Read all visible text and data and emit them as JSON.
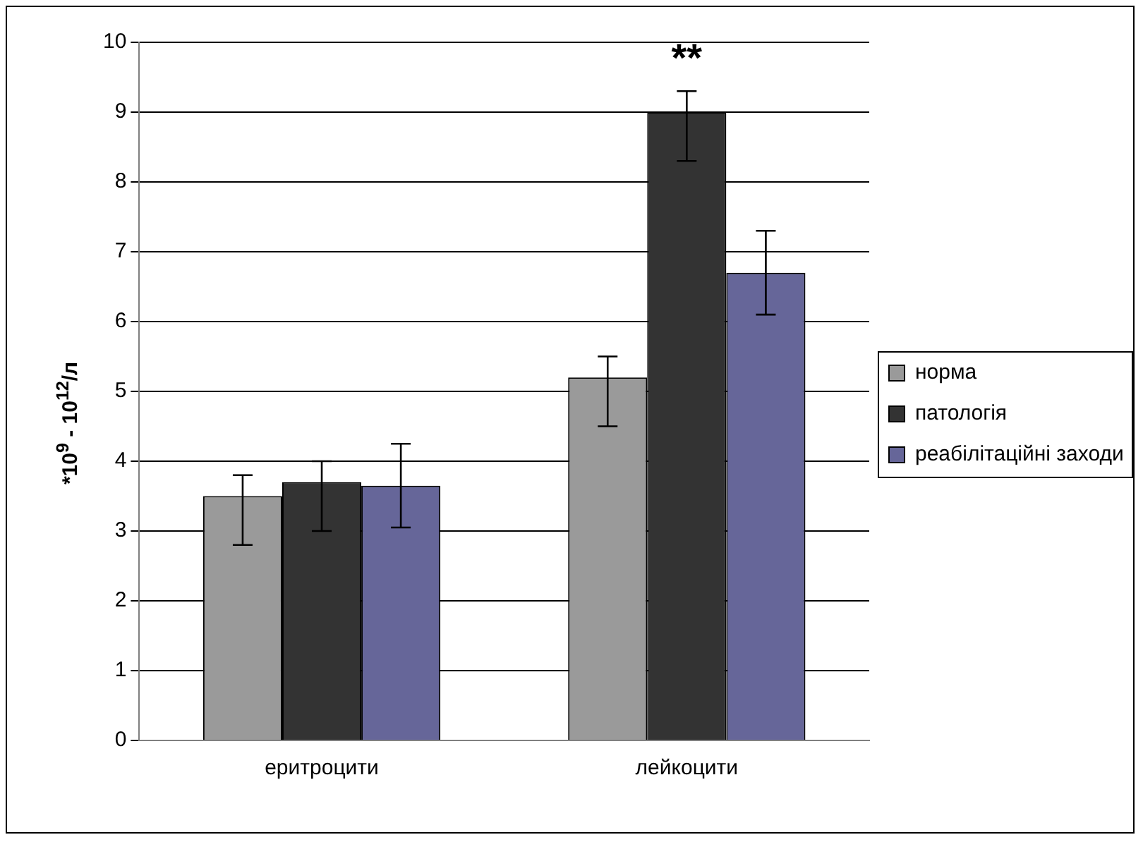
{
  "chart_data": {
    "type": "bar",
    "ylabel": "*10$^{9}$ - 10$^{12}$/л",
    "categories": [
      "еритроцити",
      "лейкоцити"
    ],
    "series": [
      {
        "name": "норма",
        "color": "#9a9a9a",
        "values": [
          3.5,
          5.2
        ],
        "errors": [
          [
            2.8,
            3.8
          ],
          [
            4.5,
            5.5
          ]
        ]
      },
      {
        "name": "патологія",
        "color": "#333333",
        "values": [
          3.7,
          9.0
        ],
        "errors": [
          [
            3.0,
            4.0
          ],
          [
            8.3,
            9.3
          ]
        ]
      },
      {
        "name": "реабілітаційні заходи",
        "color": "#666699",
        "values": [
          3.65,
          6.7
        ],
        "errors": [
          [
            3.05,
            4.25
          ],
          [
            6.1,
            7.3
          ]
        ]
      }
    ],
    "ylim": [
      0,
      10
    ],
    "yticks": [
      0,
      1,
      2,
      3,
      4,
      5,
      6,
      7,
      8,
      9,
      10
    ],
    "grid": "y",
    "legend": "right",
    "annotations": [
      "**"
    ]
  }
}
